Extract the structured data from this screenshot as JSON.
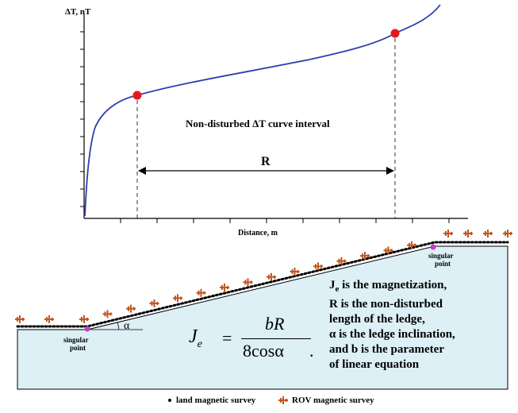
{
  "top_chart": {
    "y_axis_label": "ΔT, nT",
    "x_axis_label": "Distance, m",
    "interval_label": "Non-disturbed ΔT curve interval",
    "range_label": "R"
  },
  "bottom_diagram": {
    "singular_point_left": "singular point",
    "singular_point_right": "singular point",
    "angle_label": "α",
    "formula": {
      "lhs": "J",
      "lhs_sub": "e",
      "numerator": "bR",
      "denominator": "8cosα"
    },
    "description_lines": [
      "J_e is the magnetization,",
      "R is the non-disturbed",
      "length of the ledge,",
      "α is the ledge inclination,",
      "and b is the parameter",
      "of linear equation"
    ]
  },
  "legend": {
    "land_label": "land magnetic survey",
    "rov_label": "ROV magnetic survey"
  },
  "colors": {
    "curve": "#2e3fb0",
    "marker": "#e8161b",
    "ledge_fill": "#dcf0f5",
    "rov_marker": "#c1561e",
    "singular_point": "#c040c8"
  }
}
